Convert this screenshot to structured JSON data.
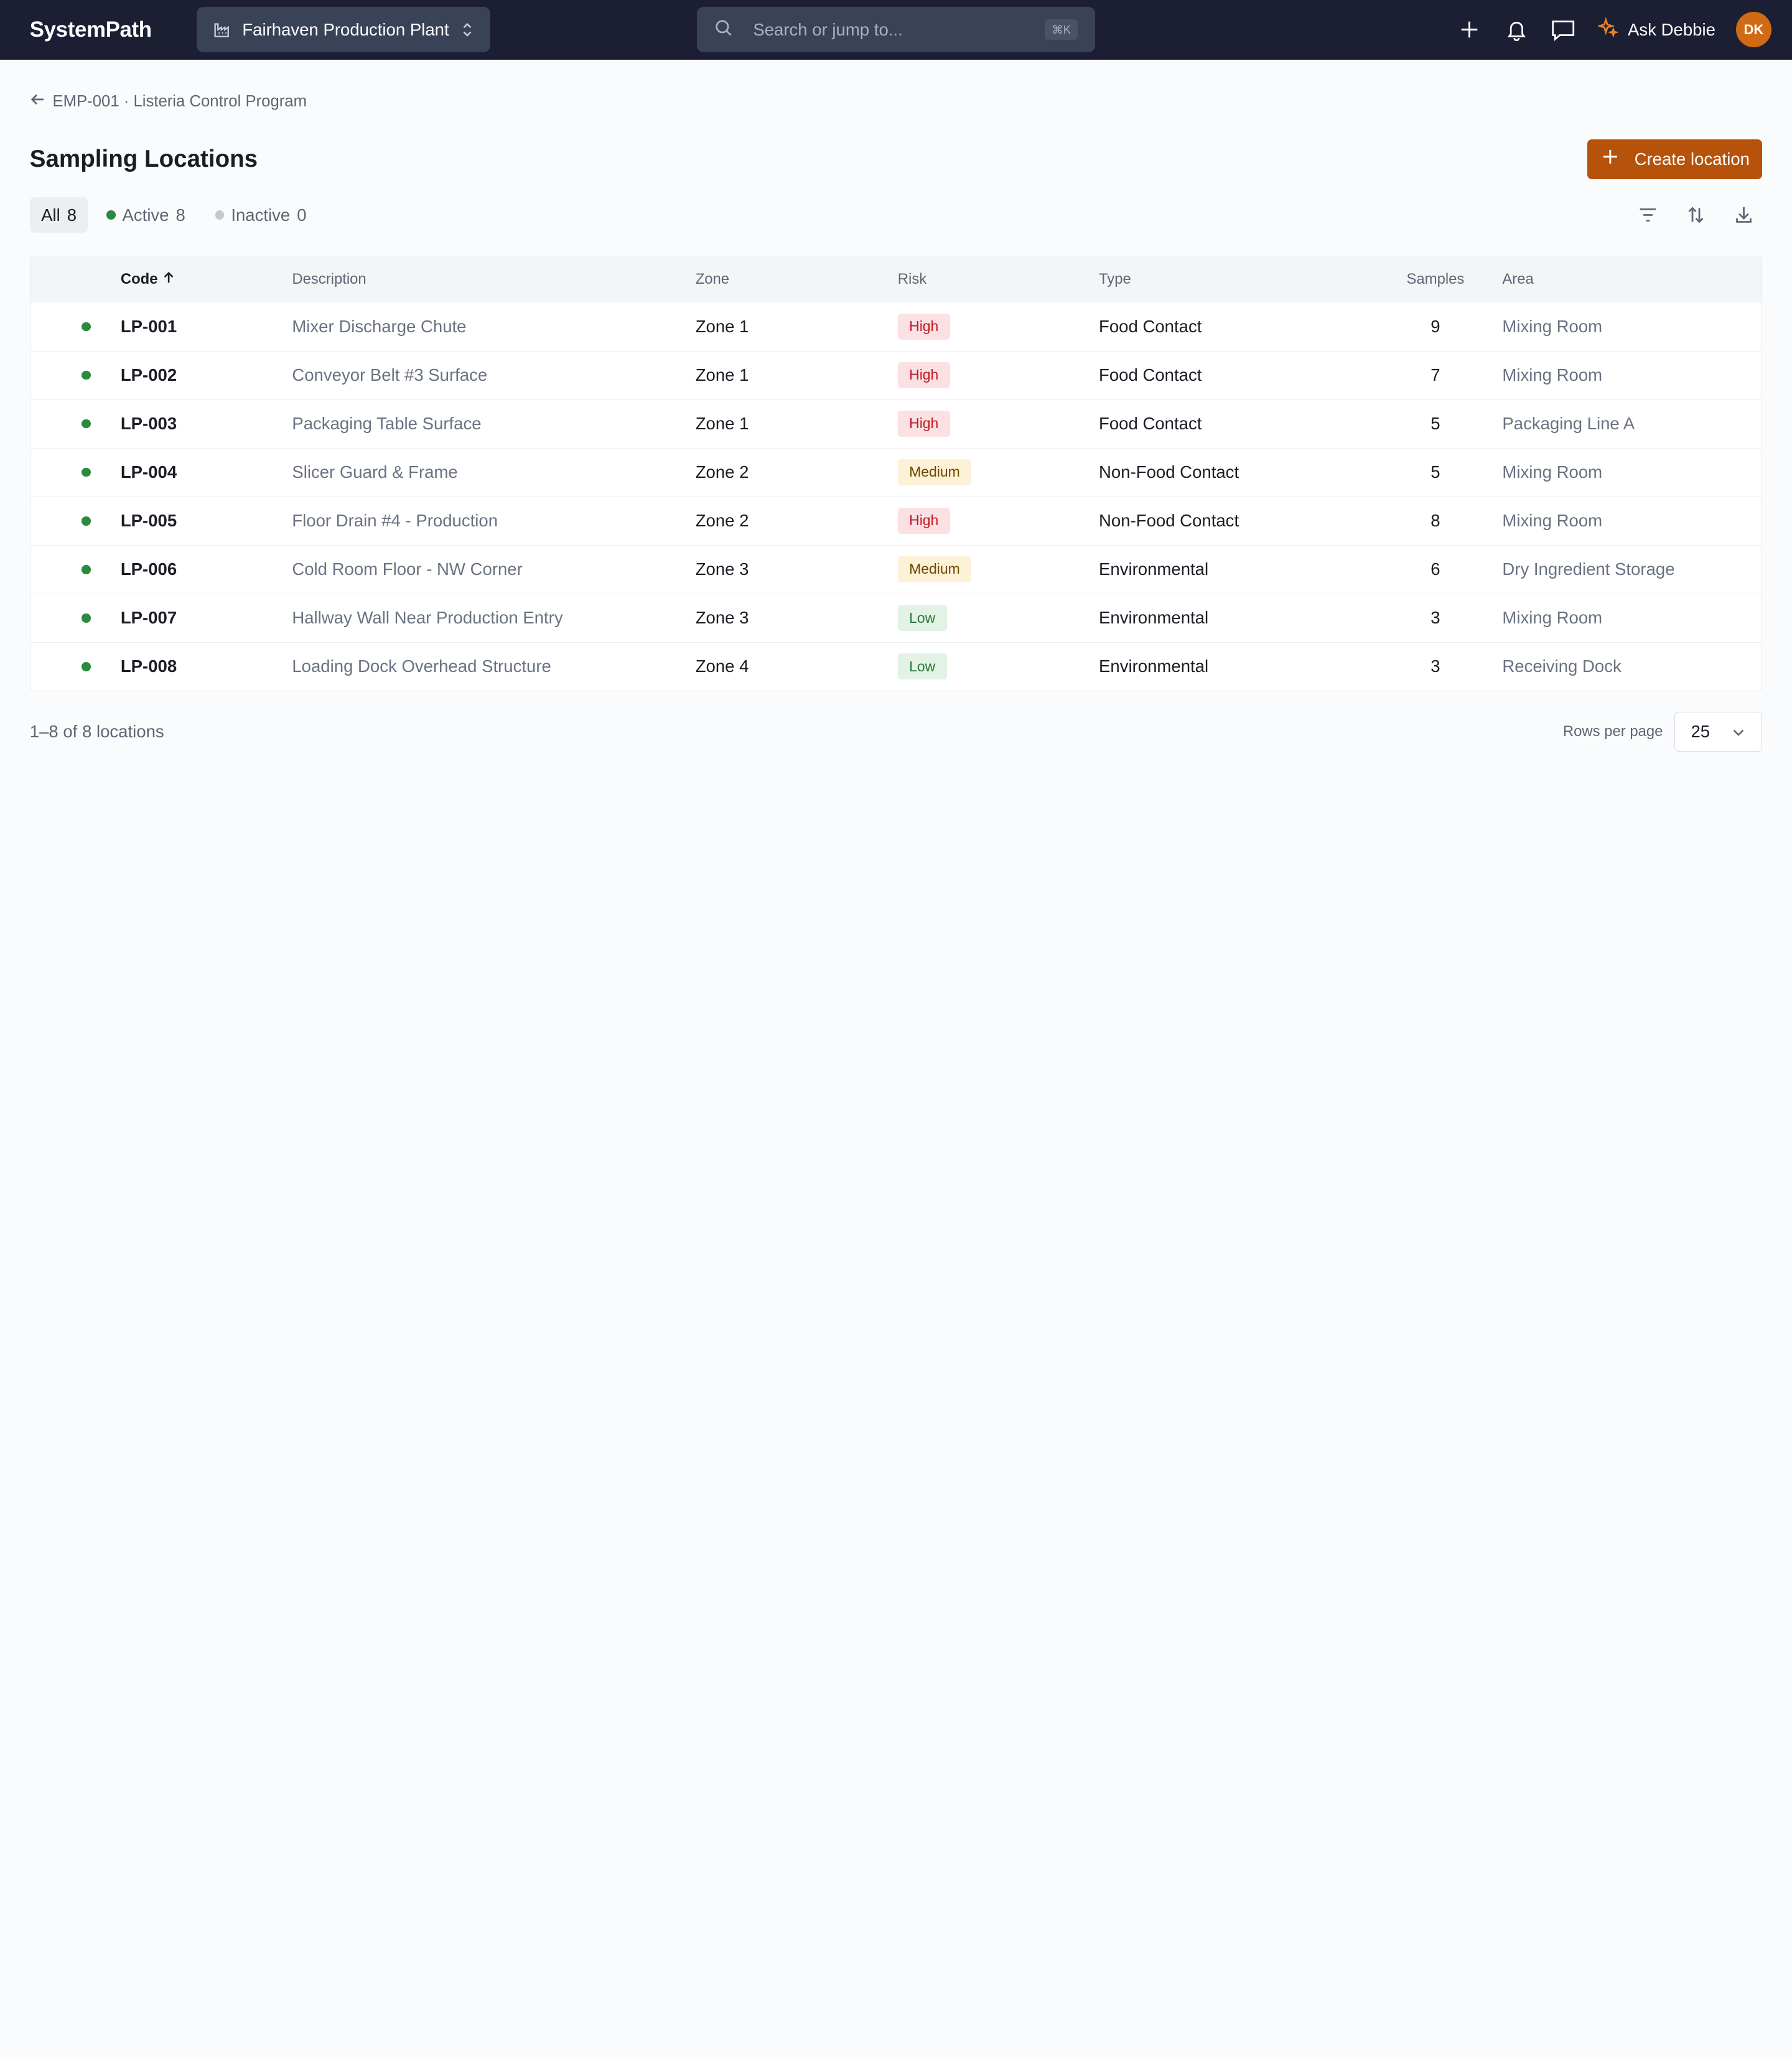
{
  "app": {
    "logo": "SystemPath",
    "plant": "Fairhaven Production Plant",
    "search_placeholder": "Search or jump to...",
    "search_shortcut": "⌘K",
    "ask_label": "Ask Debbie",
    "avatar_initials": "DK"
  },
  "breadcrumb": {
    "label": "EMP-001 · Listeria Control Program"
  },
  "page": {
    "title": "Sampling Locations",
    "create_label": "Create location"
  },
  "tabs": [
    {
      "label": "All",
      "count": "8"
    },
    {
      "label": "Active",
      "count": "8"
    },
    {
      "label": "Inactive",
      "count": "0"
    }
  ],
  "table": {
    "headers": {
      "code": "Code",
      "description": "Description",
      "zone": "Zone",
      "risk": "Risk",
      "type": "Type",
      "samples": "Samples",
      "area": "Area"
    },
    "rows": [
      {
        "code": "LP-001",
        "description": "Mixer Discharge Chute",
        "zone": "Zone 1",
        "risk": "High",
        "type": "Food Contact",
        "samples": "9",
        "area": "Mixing Room"
      },
      {
        "code": "LP-002",
        "description": "Conveyor Belt #3 Surface",
        "zone": "Zone 1",
        "risk": "High",
        "type": "Food Contact",
        "samples": "7",
        "area": "Mixing Room"
      },
      {
        "code": "LP-003",
        "description": "Packaging Table Surface",
        "zone": "Zone 1",
        "risk": "High",
        "type": "Food Contact",
        "samples": "5",
        "area": "Packaging Line A"
      },
      {
        "code": "LP-004",
        "description": "Slicer Guard & Frame",
        "zone": "Zone 2",
        "risk": "Medium",
        "type": "Non-Food Contact",
        "samples": "5",
        "area": "Mixing Room"
      },
      {
        "code": "LP-005",
        "description": "Floor Drain #4 - Production",
        "zone": "Zone 2",
        "risk": "High",
        "type": "Non-Food Contact",
        "samples": "8",
        "area": "Mixing Room"
      },
      {
        "code": "LP-006",
        "description": "Cold Room Floor - NW Corner",
        "zone": "Zone 3",
        "risk": "Medium",
        "type": "Environmental",
        "samples": "6",
        "area": "Dry Ingredient Storage"
      },
      {
        "code": "LP-007",
        "description": "Hallway Wall Near Production Entry",
        "zone": "Zone 3",
        "risk": "Low",
        "type": "Environmental",
        "samples": "3",
        "area": "Mixing Room"
      },
      {
        "code": "LP-008",
        "description": "Loading Dock Overhead Structure",
        "zone": "Zone 4",
        "risk": "Low",
        "type": "Environmental",
        "samples": "3",
        "area": "Receiving Dock"
      }
    ]
  },
  "footer": {
    "range": "1–8 of 8 locations",
    "rows_per_page_label": "Rows per page",
    "rows_per_page_value": "25"
  },
  "colors": {
    "topbar": "#1c1f33",
    "accent": "#b7520b",
    "active_dot": "#2a8a3e",
    "inactive_dot": "#c4c8cf"
  }
}
